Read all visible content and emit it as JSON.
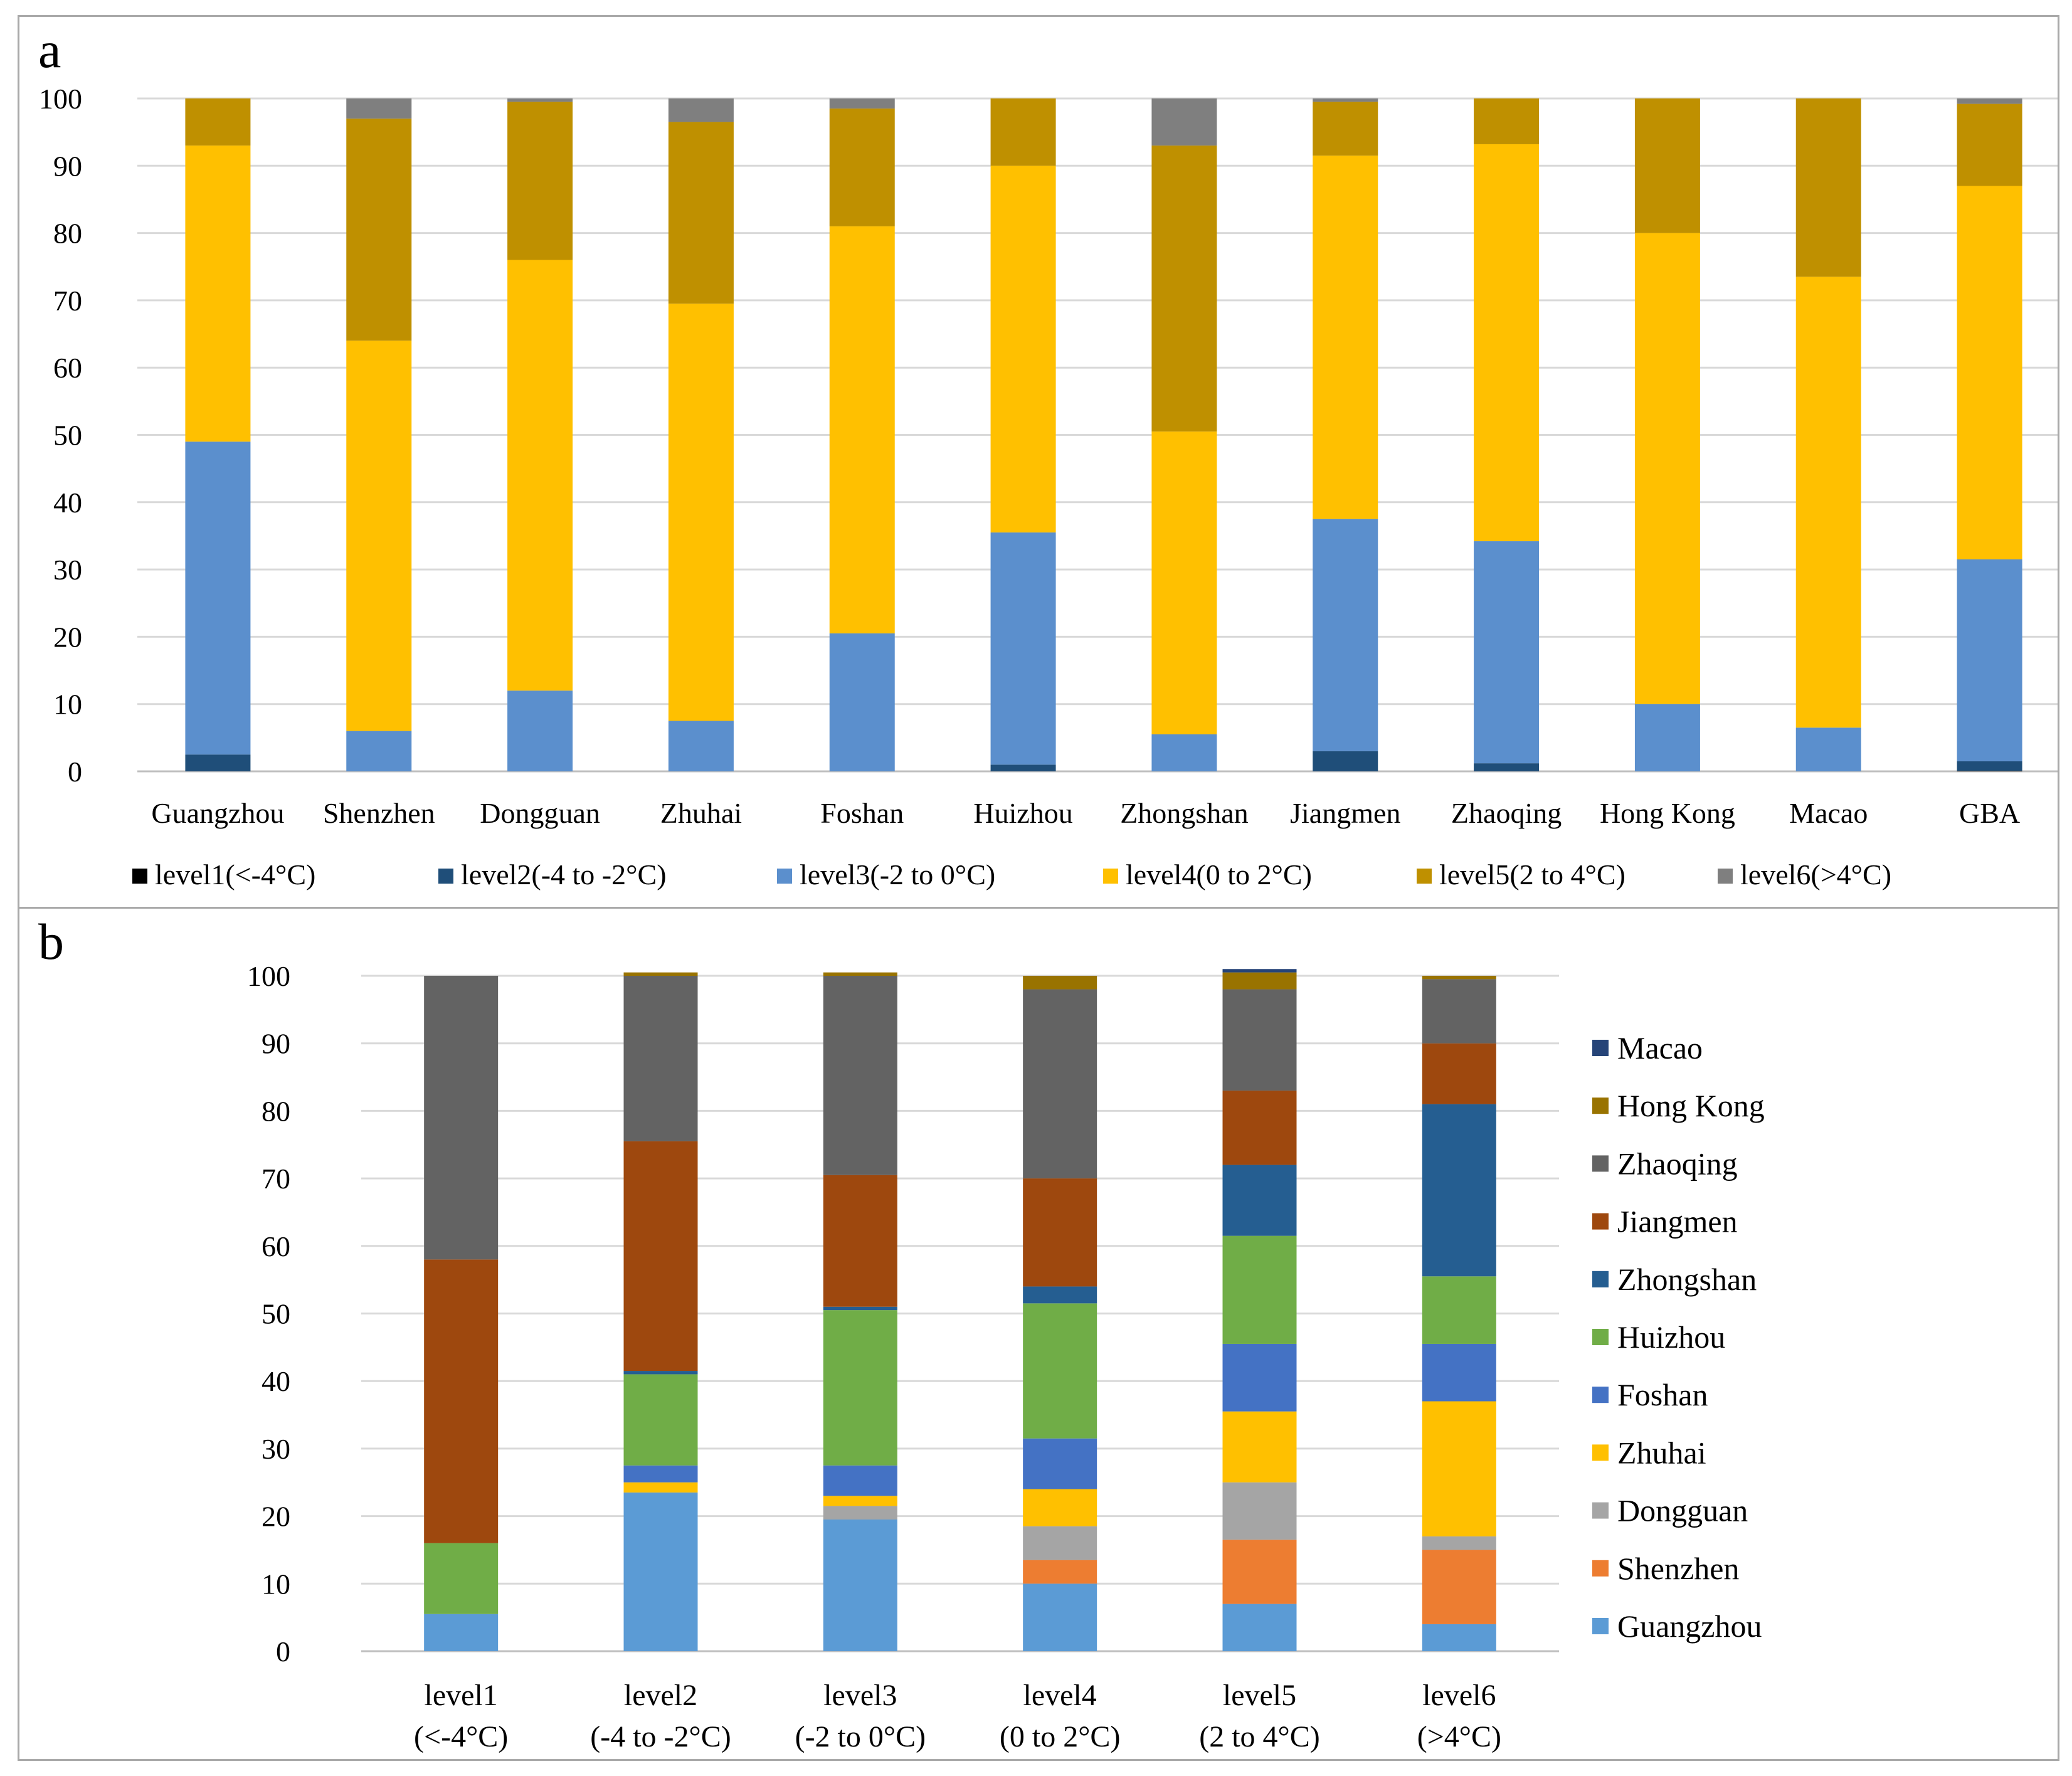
{
  "colors": {
    "panel_a": [
      "#000000",
      "#1f4e79",
      "#5b8fcd",
      "#ffc000",
      "#bf9000",
      "#7f7f7f"
    ],
    "panel_b": [
      "#5b9bd5",
      "#ed7d31",
      "#a5a5a5",
      "#ffc000",
      "#4472c4",
      "#70ad47",
      "#255e91",
      "#9e480e",
      "#636363",
      "#997300",
      "#264478"
    ],
    "grid": "#d9d9d9",
    "axis": "#bfbfbf",
    "text": "#000000"
  },
  "chart_data": [
    {
      "type": "bar",
      "stacked": true,
      "panel_label": "a",
      "categories": [
        "Guangzhou",
        "Shenzhen",
        "Dongguan",
        "Zhuhai",
        "Foshan",
        "Huizhou",
        "Zhongshan",
        "Jiangmen",
        "Zhaoqing",
        "Hong Kong",
        "Macao",
        "GBA"
      ],
      "ylim": [
        0,
        100
      ],
      "yticks": [
        "0",
        "10",
        "20",
        "30",
        "40",
        "50",
        "60",
        "70",
        "80",
        "90",
        "100"
      ],
      "grid": true,
      "legend_position": "bottom",
      "series": [
        {
          "name": "level1(<-4°C)",
          "values": [
            0,
            0,
            0,
            0,
            0,
            0,
            0,
            0,
            0,
            0,
            0,
            0.1
          ]
        },
        {
          "name": "level2(-4 to -2°C)",
          "values": [
            2.5,
            0,
            0,
            0,
            0,
            1,
            0,
            3,
            1.2,
            0,
            0,
            1.4
          ]
        },
        {
          "name": "level3(-2 to 0°C)",
          "values": [
            46.5,
            6,
            12,
            7.5,
            20.5,
            34.5,
            5.5,
            34.5,
            33,
            10,
            6.5,
            30
          ]
        },
        {
          "name": "level4(0 to 2°C)",
          "values": [
            44,
            58,
            64,
            62,
            60.5,
            54.5,
            45,
            54,
            59,
            70,
            67,
            55.5
          ]
        },
        {
          "name": "level5(2 to 4°C)",
          "values": [
            7,
            33,
            23.5,
            27,
            17.5,
            10,
            42.5,
            8,
            6.8,
            20,
            26.5,
            12.2
          ]
        },
        {
          "name": "level6(>4°C)",
          "values": [
            0,
            3,
            0.5,
            3.5,
            1.5,
            0,
            7,
            0.5,
            0,
            0,
            0,
            0.8
          ]
        }
      ]
    },
    {
      "type": "bar",
      "stacked": true,
      "panel_label": "b",
      "categories": [
        [
          "level1",
          "(<-4°C)"
        ],
        [
          "level2",
          "(-4 to -2°C)"
        ],
        [
          "level3",
          "(-2 to 0°C)"
        ],
        [
          "level4",
          "(0 to 2°C)"
        ],
        [
          "level5",
          "(2 to 4°C)"
        ],
        [
          "level6",
          "(>4°C)"
        ]
      ],
      "ylim": [
        0,
        100
      ],
      "yticks": [
        "0",
        "10",
        "20",
        "30",
        "40",
        "50",
        "60",
        "70",
        "80",
        "90",
        "100"
      ],
      "grid": true,
      "legend_position": "right",
      "series": [
        {
          "name": "Guangzhou",
          "values": [
            5.5,
            23.5,
            19.5,
            10,
            7,
            4
          ]
        },
        {
          "name": "Shenzhen",
          "values": [
            0,
            0,
            0,
            3.5,
            9.5,
            11
          ]
        },
        {
          "name": "Dongguan",
          "values": [
            0,
            0,
            2,
            5,
            8.5,
            2
          ]
        },
        {
          "name": "Zhuhai",
          "values": [
            0,
            1.5,
            1.5,
            5.5,
            10.5,
            20
          ]
        },
        {
          "name": "Foshan",
          "values": [
            0,
            2.5,
            4.5,
            7.5,
            10,
            8.5
          ]
        },
        {
          "name": "Huizhou",
          "values": [
            10.5,
            13.5,
            23,
            20,
            16,
            10
          ]
        },
        {
          "name": "Zhongshan",
          "values": [
            0,
            0.5,
            0.5,
            2.5,
            10.5,
            25.5
          ]
        },
        {
          "name": "Jiangmen",
          "values": [
            42,
            34,
            19.5,
            16,
            11,
            9
          ]
        },
        {
          "name": "Zhaoqing",
          "values": [
            42,
            24.5,
            29.5,
            28,
            15,
            9.5
          ]
        },
        {
          "name": "Hong Kong",
          "values": [
            0,
            0.5,
            0.5,
            2,
            2.5,
            0.5
          ]
        },
        {
          "name": "Macao",
          "values": [
            0,
            0,
            0,
            0,
            0.5,
            0
          ]
        }
      ]
    }
  ]
}
